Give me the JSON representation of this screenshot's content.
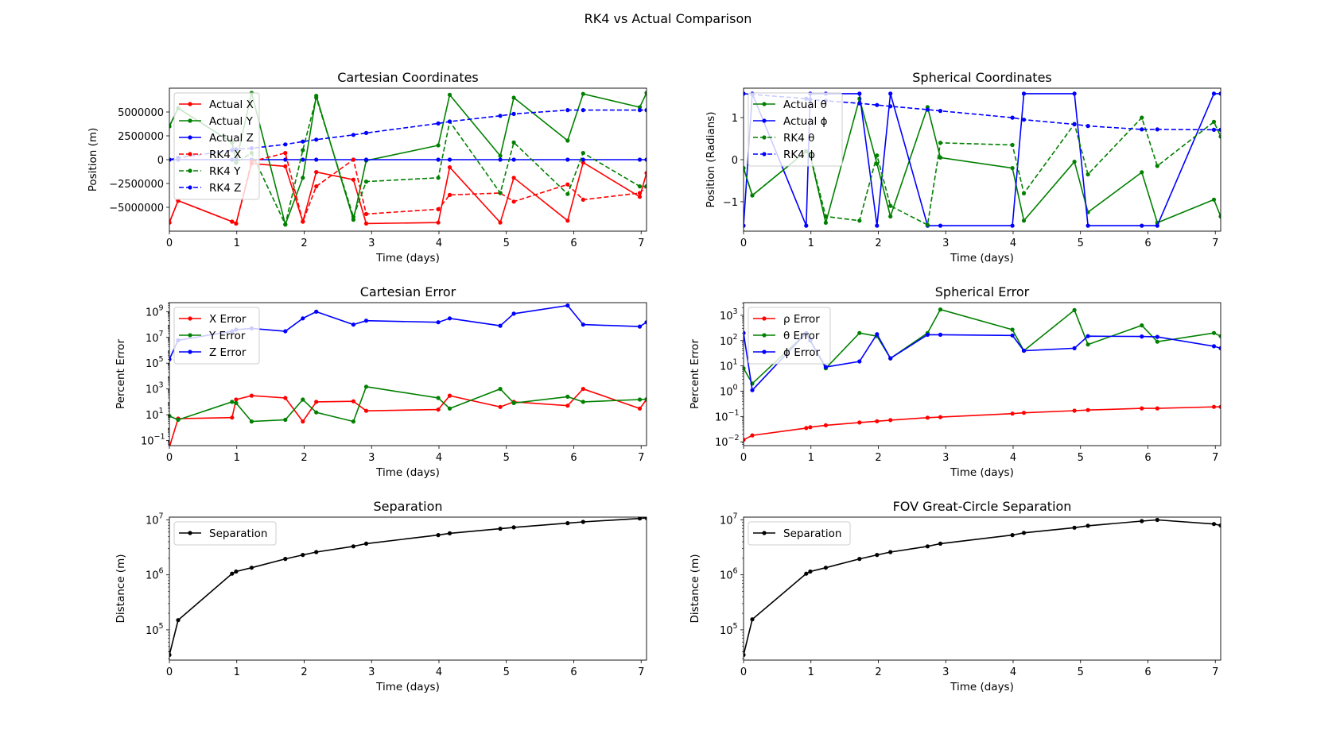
{
  "figure": {
    "title": "RK4 vs Actual Comparison"
  },
  "colors": {
    "red": "#ff0000",
    "green": "#008000",
    "blue": "#0000ff",
    "black": "#000000"
  },
  "chart_data": [
    {
      "type": "line",
      "title": "Cartesian Coordinates",
      "xlabel": "Time (days)",
      "ylabel": "Position (m)",
      "xlim": [
        0,
        7.08
      ],
      "ylim": [
        -7500000,
        7500000
      ],
      "yscale": "linear",
      "xticks": [
        0,
        1,
        2,
        3,
        4,
        5,
        6,
        7
      ],
      "yticks": [
        -5000000,
        -2500000,
        0,
        2500000,
        5000000
      ],
      "ytick_labels": [
        "−5000000",
        "−2500000",
        "0",
        "2500000",
        "5000000"
      ],
      "legend": "upper left",
      "series": [
        {
          "name": "Actual X",
          "color": "red",
          "dash": false,
          "x": [
            0,
            0.13,
            0.93,
            0.99,
            1.22,
            1.72,
            1.98,
            2.18,
            2.73,
            2.92,
            3.99,
            4.16,
            4.91,
            5.11,
            5.91,
            6.14,
            6.98,
            7.08
          ],
          "y": [
            -6600000,
            -4300000,
            -6500000,
            -6700000,
            -400000,
            -700000,
            -6500000,
            -1300000,
            -2100000,
            -6700000,
            -6600000,
            -800000,
            -6600000,
            -1900000,
            -6400000,
            -300000,
            -3900000,
            -1400000
          ]
        },
        {
          "name": "Actual Y",
          "color": "green",
          "dash": false,
          "x": [
            0,
            0.13,
            0.93,
            0.99,
            1.22,
            1.72,
            1.98,
            2.18,
            2.73,
            2.92,
            3.99,
            4.16,
            4.91,
            5.11,
            5.91,
            6.14,
            6.98,
            7.08
          ],
          "y": [
            3500000,
            5400000,
            1800000,
            -300000,
            7000000,
            -6800000,
            -1900000,
            6700000,
            -6300000,
            -100000,
            1500000,
            6800000,
            400000,
            6500000,
            2000000,
            6900000,
            5500000,
            7000000
          ]
        },
        {
          "name": "Actual Z",
          "color": "blue",
          "dash": false,
          "x": [
            0,
            0.13,
            0.93,
            0.99,
            1.22,
            1.72,
            1.98,
            2.18,
            2.73,
            2.92,
            3.99,
            4.16,
            4.91,
            5.11,
            5.91,
            6.14,
            6.98,
            7.08
          ],
          "y": [
            0,
            0,
            0,
            0,
            0,
            0,
            0,
            0,
            0,
            0,
            0,
            0,
            0,
            0,
            0,
            0,
            0,
            0
          ]
        },
        {
          "name": "RK4 X",
          "color": "red",
          "dash": true,
          "x": [
            0,
            0.13,
            0.93,
            0.99,
            1.22,
            1.72,
            1.98,
            2.18,
            2.73,
            2.92,
            3.99,
            4.16,
            4.91,
            5.11,
            5.91,
            6.14,
            6.98,
            7.08
          ],
          "y": [
            -6600000,
            -4300000,
            -6500000,
            -6700000,
            -200000,
            700000,
            -6500000,
            -2800000,
            0,
            -5700000,
            -5200000,
            -3700000,
            -3500000,
            -4400000,
            -2600000,
            -4200000,
            -3500000,
            -2800000
          ]
        },
        {
          "name": "RK4 Y",
          "color": "green",
          "dash": true,
          "x": [
            0,
            0.13,
            0.93,
            0.99,
            1.22,
            1.72,
            1.98,
            2.18,
            2.73,
            2.92,
            3.99,
            4.16,
            4.91,
            5.11,
            5.91,
            6.14,
            6.98,
            7.08
          ],
          "y": [
            3500000,
            5400000,
            1800000,
            -300000,
            700000,
            -6800000,
            1000000,
            6500000,
            -6000000,
            -2300000,
            -1900000,
            4000000,
            -3500000,
            1800000,
            -3600000,
            700000,
            -2800000,
            -2800000
          ]
        },
        {
          "name": "RK4 Z",
          "color": "blue",
          "dash": true,
          "x": [
            0,
            0.13,
            0.93,
            0.99,
            1.22,
            1.72,
            1.98,
            2.18,
            2.73,
            2.92,
            3.99,
            4.16,
            4.91,
            5.11,
            5.91,
            6.14,
            6.98,
            7.08
          ],
          "y": [
            0,
            200000,
            1000000,
            1100000,
            1200000,
            1600000,
            1900000,
            2100000,
            2600000,
            2800000,
            3800000,
            4000000,
            4600000,
            4800000,
            5200000,
            5200000,
            5200000,
            5200000
          ]
        }
      ]
    },
    {
      "type": "line",
      "title": "Spherical Coordinates",
      "xlabel": "Time (days)",
      "ylabel": "Position (Radians)",
      "xlim": [
        0,
        7.08
      ],
      "ylim": [
        -1.7,
        1.7
      ],
      "yscale": "linear",
      "xticks": [
        0,
        1,
        2,
        3,
        4,
        5,
        6,
        7
      ],
      "yticks": [
        -1,
        0,
        1
      ],
      "ytick_labels": [
        "−1",
        "0",
        "1"
      ],
      "legend": "upper left",
      "series": [
        {
          "name": "Actual θ",
          "color": "green",
          "dash": false,
          "x": [
            0,
            0.13,
            0.93,
            0.99,
            1.22,
            1.72,
            1.98,
            2.18,
            2.73,
            2.92,
            3.99,
            4.16,
            4.91,
            5.11,
            5.91,
            6.14,
            6.98,
            7.08
          ],
          "y": [
            -0.2,
            -0.85,
            0.2,
            0.1,
            -1.5,
            1.45,
            -0.1,
            -1.35,
            1.25,
            0.05,
            -0.2,
            -1.45,
            -0.05,
            -1.25,
            -0.3,
            -1.5,
            -0.95,
            -1.35
          ]
        },
        {
          "name": "Actual ϕ",
          "color": "blue",
          "dash": false,
          "x": [
            0,
            0.13,
            0.93,
            0.99,
            1.22,
            1.72,
            1.98,
            2.18,
            2.73,
            2.92,
            3.99,
            4.16,
            4.91,
            5.11,
            5.91,
            6.14,
            6.98,
            7.08
          ],
          "y": [
            -1.57,
            1.57,
            -1.57,
            1.57,
            1.57,
            1.57,
            -1.57,
            1.57,
            -1.57,
            -1.57,
            -1.57,
            1.57,
            1.57,
            -1.57,
            -1.57,
            -1.57,
            1.57,
            1.57
          ]
        },
        {
          "name": "RK4 θ",
          "color": "green",
          "dash": true,
          "x": [
            0,
            0.13,
            0.93,
            0.99,
            1.22,
            1.72,
            1.98,
            2.18,
            2.73,
            2.92,
            3.99,
            4.16,
            4.91,
            5.11,
            5.91,
            6.14,
            6.98,
            7.08
          ],
          "y": [
            -0.2,
            -0.85,
            0.2,
            0.1,
            -1.35,
            -1.45,
            0.1,
            -1.1,
            -1.55,
            0.4,
            0.35,
            -0.8,
            0.85,
            -0.35,
            1.0,
            -0.15,
            0.9,
            0.55
          ]
        },
        {
          "name": "RK4 ϕ",
          "color": "blue",
          "dash": true,
          "x": [
            0,
            0.13,
            0.93,
            0.99,
            1.22,
            1.72,
            1.98,
            2.18,
            2.73,
            2.92,
            3.99,
            4.16,
            4.91,
            5.11,
            5.91,
            6.14,
            6.98,
            7.08
          ],
          "y": [
            1.57,
            1.55,
            1.45,
            1.43,
            1.4,
            1.34,
            1.3,
            1.27,
            1.19,
            1.16,
            1.0,
            0.95,
            0.84,
            0.8,
            0.72,
            0.72,
            0.71,
            0.71
          ]
        }
      ]
    },
    {
      "type": "line",
      "title": "Cartesian Error",
      "xlabel": "Time (days)",
      "ylabel": "Percent Error",
      "xlim": [
        0,
        7.08
      ],
      "ylim": [
        -1.4,
        9.7
      ],
      "yscale": "log",
      "xticks": [
        0,
        1,
        2,
        3,
        4,
        5,
        6,
        7
      ],
      "yticks": [
        -1,
        1,
        3,
        5,
        7,
        9
      ],
      "ytick_labels": [
        "10",
        "10",
        "10",
        "10",
        "10",
        "10"
      ],
      "ytick_exponents": [
        "−1",
        "1",
        "3",
        "5",
        "7",
        "9"
      ],
      "legend": "upper left",
      "series": [
        {
          "name": "X Error",
          "color": "red",
          "dash": false,
          "x": [
            0,
            0.13,
            0.93,
            0.99,
            1.22,
            1.72,
            1.98,
            2.18,
            2.73,
            2.92,
            3.99,
            4.16,
            4.91,
            5.11,
            5.91,
            6.14,
            6.98,
            7.08
          ],
          "y": [
            0.03,
            5,
            6,
            150,
            300,
            200,
            3,
            100,
            110,
            20,
            25,
            300,
            40,
            100,
            50,
            1000,
            30,
            150
          ]
        },
        {
          "name": "Y Error",
          "color": "green",
          "dash": false,
          "x": [
            0,
            0.13,
            0.93,
            0.99,
            1.22,
            1.72,
            1.98,
            2.18,
            2.73,
            2.92,
            3.99,
            4.16,
            4.91,
            5.11,
            5.91,
            6.14,
            6.98,
            7.08
          ],
          "y": [
            8,
            4,
            100,
            80,
            3,
            4,
            150,
            15,
            3,
            1500,
            200,
            30,
            1000,
            80,
            250,
            100,
            150,
            160
          ]
        },
        {
          "name": "Z Error",
          "color": "blue",
          "dash": false,
          "x": [
            0,
            0.13,
            0.93,
            0.99,
            1.22,
            1.72,
            1.98,
            2.18,
            2.73,
            2.92,
            3.99,
            4.16,
            4.91,
            5.11,
            5.91,
            6.14,
            6.98,
            7.08
          ],
          "y": [
            200000,
            6000000,
            30000000,
            40000000,
            50000000,
            30000000,
            300000000,
            1000000000,
            100000000,
            200000000,
            150000000,
            300000000,
            80000000,
            700000000,
            3000000000,
            100000000,
            70000000,
            150000000
          ]
        }
      ]
    },
    {
      "type": "line",
      "title": "Spherical Error",
      "xlabel": "Time (days)",
      "ylabel": "Percent Error",
      "xlim": [
        0,
        7.08
      ],
      "ylim": [
        -2.15,
        3.5
      ],
      "yscale": "log",
      "xticks": [
        0,
        1,
        2,
        3,
        4,
        5,
        6,
        7
      ],
      "yticks": [
        -2,
        -1,
        0,
        1,
        2,
        3
      ],
      "ytick_labels": [
        "10",
        "10",
        "10",
        "10",
        "10",
        "10"
      ],
      "ytick_exponents": [
        "−2",
        "−1",
        "0",
        "1",
        "2",
        "3"
      ],
      "legend": "upper left",
      "series": [
        {
          "name": "ρ Error",
          "color": "red",
          "dash": false,
          "x": [
            0,
            0.13,
            0.93,
            0.99,
            1.22,
            1.72,
            1.98,
            2.18,
            2.73,
            2.92,
            3.99,
            4.16,
            4.91,
            5.11,
            5.91,
            6.14,
            6.98,
            7.08
          ],
          "y": [
            0.012,
            0.018,
            0.035,
            0.038,
            0.045,
            0.058,
            0.065,
            0.072,
            0.09,
            0.095,
            0.13,
            0.14,
            0.17,
            0.18,
            0.21,
            0.21,
            0.24,
            0.24
          ]
        },
        {
          "name": "θ Error",
          "color": "green",
          "dash": false,
          "x": [
            0,
            0.13,
            0.93,
            0.99,
            1.22,
            1.72,
            1.98,
            2.18,
            2.73,
            2.92,
            3.99,
            4.16,
            4.91,
            5.11,
            5.91,
            6.14,
            6.98,
            7.08
          ],
          "y": [
            8,
            2,
            200,
            100,
            8,
            200,
            150,
            20,
            200,
            1700,
            270,
            40,
            1600,
            70,
            400,
            90,
            200,
            150
          ]
        },
        {
          "name": "ϕ Error",
          "color": "blue",
          "dash": false,
          "x": [
            0,
            0.13,
            0.93,
            0.99,
            1.22,
            1.72,
            1.98,
            2.18,
            2.73,
            2.92,
            3.99,
            4.16,
            4.91,
            5.11,
            5.91,
            6.14,
            6.98,
            7.08
          ],
          "y": [
            200,
            1.1,
            200,
            100,
            9,
            15,
            180,
            20,
            170,
            170,
            160,
            40,
            50,
            150,
            145,
            140,
            60,
            50
          ]
        }
      ]
    },
    {
      "type": "line",
      "title": "Separation",
      "xlabel": "Time (days)",
      "ylabel": "Distance (m)",
      "xlim": [
        0,
        7.08
      ],
      "ylim": [
        4.45,
        7.05
      ],
      "yscale": "log",
      "xticks": [
        0,
        1,
        2,
        3,
        4,
        5,
        6,
        7
      ],
      "yticks": [
        5,
        6,
        7
      ],
      "ytick_labels": [
        "10",
        "10",
        "10"
      ],
      "ytick_exponents": [
        "5",
        "6",
        "7"
      ],
      "legend": "upper left",
      "series": [
        {
          "name": "Separation",
          "color": "black",
          "dash": false,
          "x": [
            0,
            0.13,
            0.93,
            0.99,
            1.22,
            1.72,
            1.98,
            2.18,
            2.73,
            2.92,
            3.99,
            4.16,
            4.91,
            5.11,
            5.91,
            6.14,
            6.98,
            7.08
          ],
          "y": [
            35000,
            150000,
            1050000,
            1150000,
            1350000,
            1950000,
            2300000,
            2600000,
            3300000,
            3700000,
            5300000,
            5700000,
            6900000,
            7300000,
            8700000,
            9200000,
            10600000,
            10800000
          ]
        }
      ]
    },
    {
      "type": "line",
      "title": "FOV Great-Circle Separation",
      "xlabel": "Time (days)",
      "ylabel": "Distance (m)",
      "xlim": [
        0,
        7.08
      ],
      "ylim": [
        4.45,
        7.05
      ],
      "yscale": "log",
      "xticks": [
        0,
        1,
        2,
        3,
        4,
        5,
        6,
        7
      ],
      "yticks": [
        5,
        6,
        7
      ],
      "ytick_labels": [
        "10",
        "10",
        "10"
      ],
      "ytick_exponents": [
        "5",
        "6",
        "7"
      ],
      "legend": "upper left",
      "series": [
        {
          "name": "Separation",
          "color": "black",
          "dash": false,
          "x": [
            0,
            0.13,
            0.93,
            0.99,
            1.22,
            1.72,
            1.98,
            2.18,
            2.73,
            2.92,
            3.99,
            4.16,
            4.91,
            5.11,
            5.91,
            6.14,
            6.98,
            7.08
          ],
          "y": [
            35000,
            155000,
            1050000,
            1150000,
            1350000,
            1950000,
            2300000,
            2600000,
            3300000,
            3700000,
            5300000,
            5800000,
            7200000,
            7800000,
            9500000,
            10000000,
            8400000,
            7900000
          ]
        }
      ]
    }
  ]
}
